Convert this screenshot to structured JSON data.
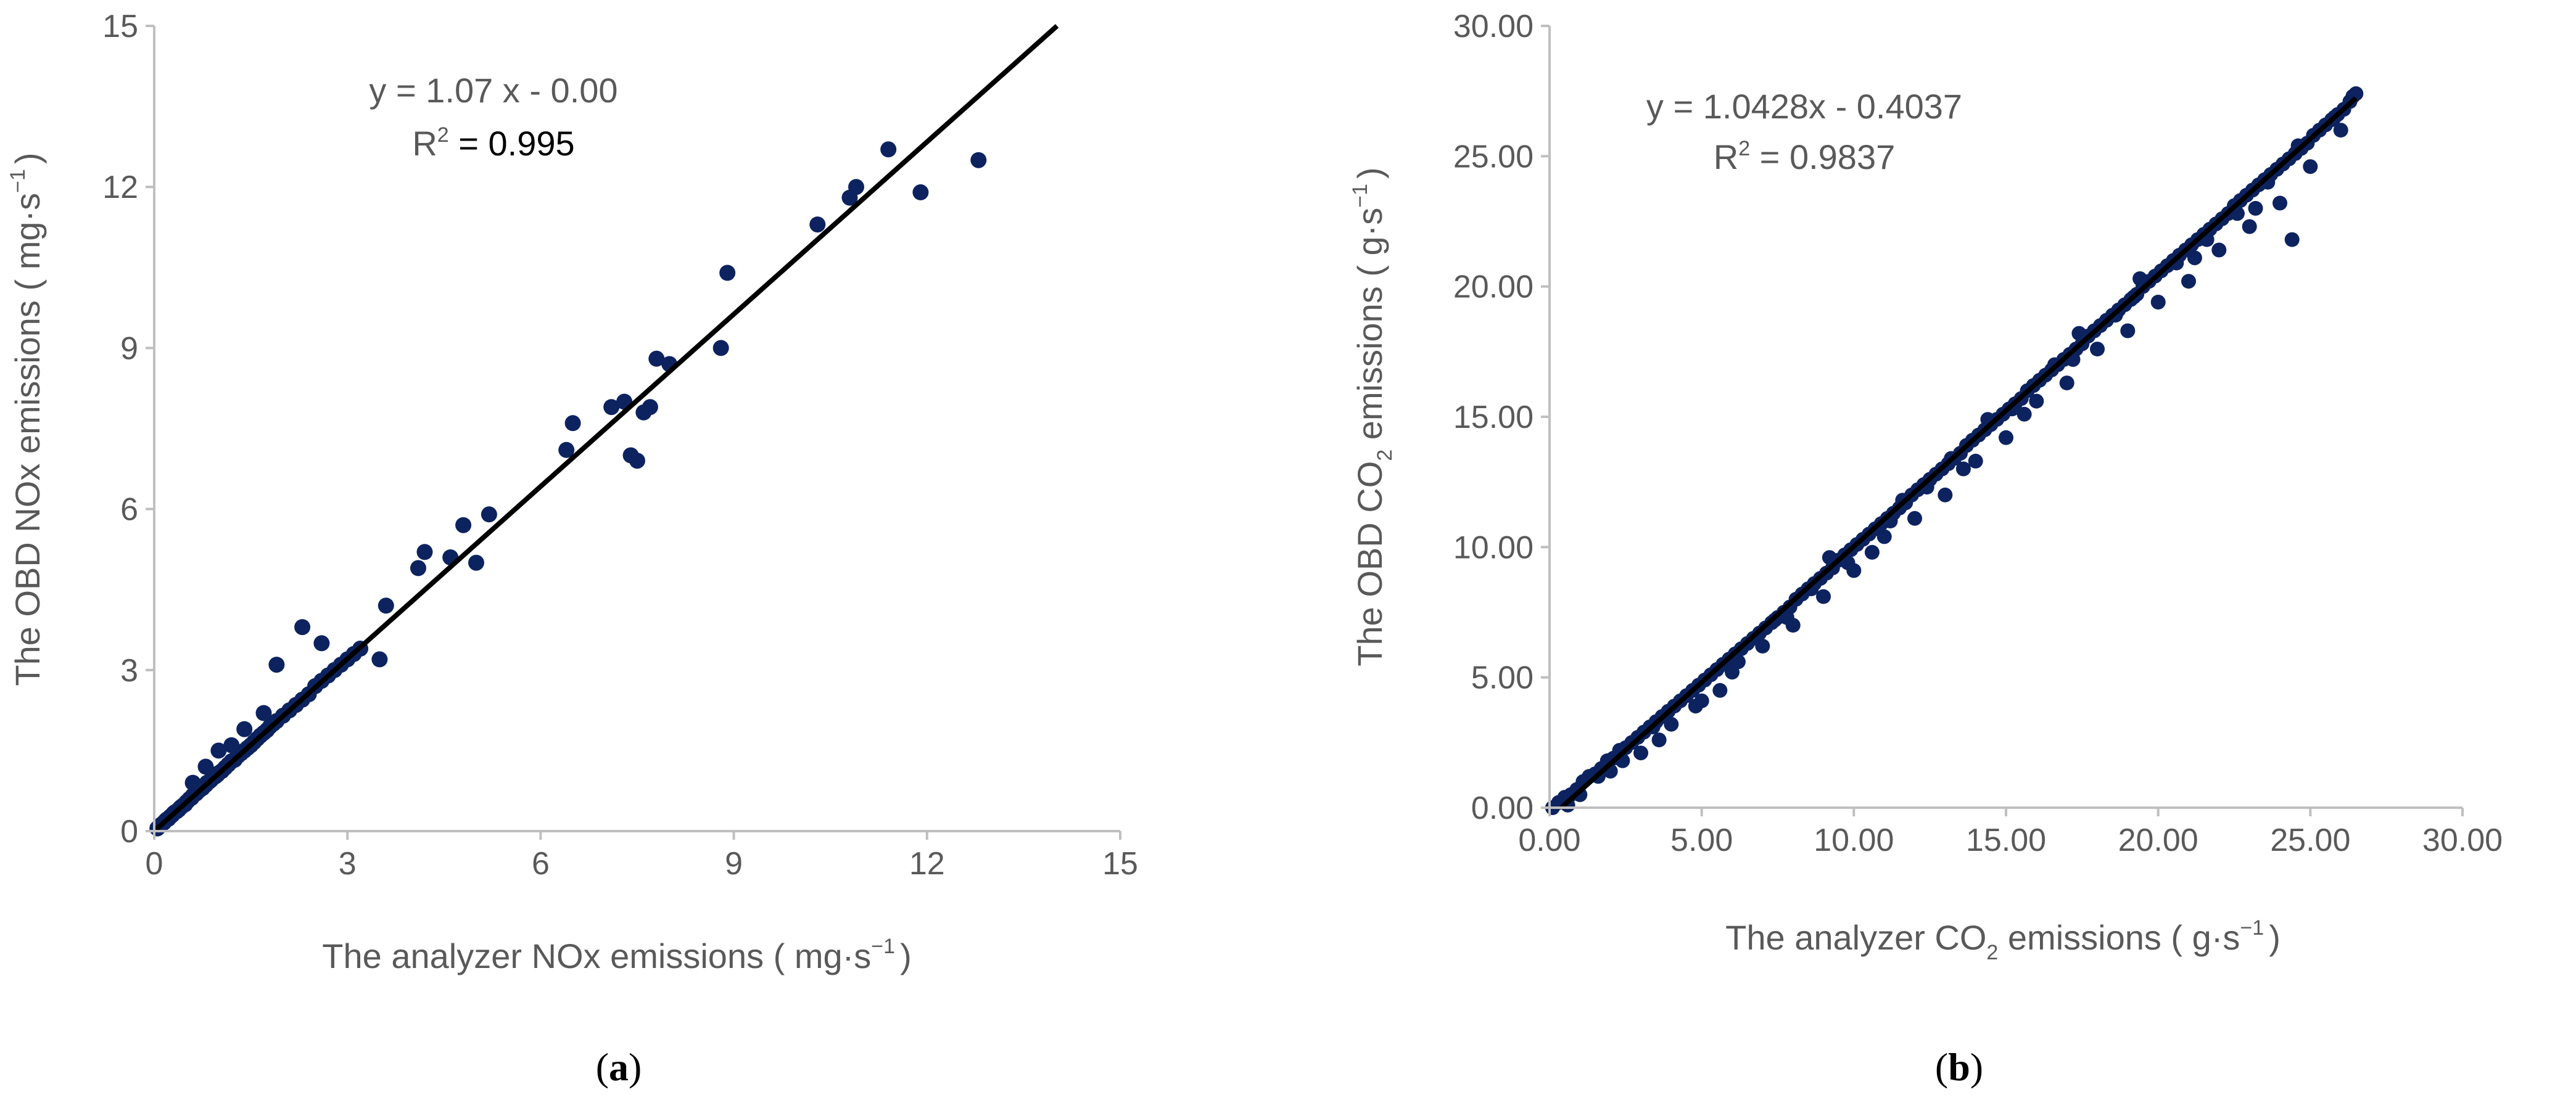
{
  "colors": {
    "points": "#0d2360",
    "axis": "#bfbfbf",
    "text": "#595959",
    "fit": "#000000"
  },
  "chart_data": [
    {
      "type": "scatter",
      "panel_label": "(a)",
      "panel_letter": "a",
      "xlabel_pre": "The analyzer NOx emissions ( mg·s",
      "xlabel_sup": "−1",
      "xlabel_post": ")",
      "ylabel_pre": "The OBD NOx emissions ( mg·s",
      "ylabel_sup": "−1",
      "ylabel_post": ")",
      "xlim": [
        0,
        15
      ],
      "ylim": [
        0,
        15
      ],
      "xticks": [
        "0",
        "3",
        "6",
        "9",
        "12",
        "15"
      ],
      "yticks": [
        "0",
        "3",
        "6",
        "9",
        "12",
        "15"
      ],
      "equation": "y = 1.07 x - 0.00",
      "r2_label": "R",
      "r2_sup": "2",
      "r2_value": " = 0.995",
      "fit": {
        "slope": 1.07,
        "intercept": 0.0
      },
      "legend": "none",
      "grid": false,
      "x": [
        0.05,
        0.08,
        0.1,
        0.12,
        0.15,
        0.18,
        0.2,
        0.22,
        0.25,
        0.28,
        0.3,
        0.32,
        0.35,
        0.38,
        0.4,
        0.42,
        0.45,
        0.48,
        0.5,
        0.52,
        0.55,
        0.58,
        0.6,
        0.62,
        0.65,
        0.68,
        0.7,
        0.72,
        0.75,
        0.78,
        0.8,
        0.82,
        0.85,
        0.88,
        0.9,
        0.92,
        0.95,
        0.98,
        1.0,
        1.05,
        1.1,
        1.15,
        1.2,
        1.25,
        1.3,
        1.35,
        1.4,
        1.45,
        1.5,
        1.55,
        1.6,
        1.65,
        1.7,
        1.75,
        1.8,
        1.85,
        1.9,
        2.0,
        2.1,
        2.2,
        2.3,
        2.4,
        2.5,
        2.6,
        2.7,
        2.8,
        2.9,
        3.0,
        3.1,
        3.2,
        3.5,
        3.6,
        4.1,
        4.2,
        4.6,
        4.8,
        5.0,
        5.2,
        6.4,
        6.5,
        7.1,
        7.3,
        7.4,
        7.5,
        7.6,
        7.7,
        7.8,
        8.0,
        8.8,
        8.9,
        10.3,
        10.8,
        10.9,
        11.4,
        11.9,
        12.8,
        1.2,
        1.4,
        1.0,
        0.8,
        0.6,
        1.7,
        1.9,
        2.3,
        2.6
      ],
      "y": [
        0.05,
        0.09,
        0.11,
        0.13,
        0.16,
        0.2,
        0.22,
        0.23,
        0.27,
        0.3,
        0.33,
        0.35,
        0.37,
        0.4,
        0.43,
        0.45,
        0.48,
        0.5,
        0.54,
        0.56,
        0.6,
        0.62,
        0.66,
        0.68,
        0.7,
        0.74,
        0.76,
        0.78,
        0.8,
        0.85,
        0.86,
        0.9,
        0.92,
        0.95,
        0.98,
        1.0,
        1.02,
        1.05,
        1.08,
        1.12,
        1.18,
        1.24,
        1.3,
        1.33,
        1.4,
        1.45,
        1.5,
        1.55,
        1.6,
        1.66,
        1.72,
        1.78,
        1.83,
        1.88,
        1.95,
        2.0,
        2.05,
        2.15,
        2.25,
        2.35,
        2.45,
        2.55,
        2.7,
        2.8,
        2.9,
        3.0,
        3.1,
        3.2,
        3.3,
        3.4,
        3.2,
        4.2,
        4.9,
        5.2,
        5.1,
        5.7,
        5.0,
        5.9,
        7.1,
        7.6,
        7.9,
        8.0,
        7.0,
        6.9,
        7.8,
        7.9,
        8.8,
        8.7,
        9.0,
        10.4,
        11.3,
        11.8,
        12.0,
        12.7,
        11.9,
        12.5,
        1.6,
        1.9,
        1.5,
        1.2,
        0.9,
        2.2,
        3.1,
        3.8,
        3.5
      ]
    },
    {
      "type": "scatter",
      "panel_label": "(b)",
      "panel_letter": "b",
      "xlabel_pre": "The analyzer CO",
      "xlabel_sub": "2",
      "xlabel_mid": " emissions ( g·s",
      "xlabel_sup": "−1",
      "xlabel_post": ")",
      "ylabel_pre": "The  OBD CO",
      "ylabel_sub": "2",
      "ylabel_mid": " emissions ( g·s",
      "ylabel_sup": "−1",
      "ylabel_post": ")",
      "xlim": [
        0,
        30
      ],
      "ylim": [
        0,
        30
      ],
      "xticks": [
        "0.00",
        "5.00",
        "10.00",
        "15.00",
        "20.00",
        "25.00",
        "30.00"
      ],
      "yticks": [
        "0.00",
        "5.00",
        "10.00",
        "15.00",
        "20.00",
        "25.00",
        "30.00"
      ],
      "equation": "y = 1.0428x - 0.4037",
      "r2_label": "R",
      "r2_sup": "2",
      "r2_value": " = 0.9837",
      "fit": {
        "slope": 1.0428,
        "intercept": -0.4037
      },
      "legend": "none",
      "grid": false,
      "x": [
        0.1,
        0.3,
        0.5,
        0.7,
        0.9,
        1.1,
        1.3,
        1.5,
        1.7,
        1.9,
        2.1,
        2.3,
        2.5,
        2.7,
        2.9,
        3.1,
        3.3,
        3.5,
        3.7,
        3.9,
        4.1,
        4.3,
        4.5,
        4.7,
        4.9,
        5.1,
        5.3,
        5.5,
        5.7,
        5.9,
        6.1,
        6.3,
        6.5,
        6.7,
        6.9,
        7.1,
        7.3,
        7.5,
        7.7,
        7.9,
        8.1,
        8.3,
        8.5,
        8.7,
        8.9,
        9.1,
        9.3,
        9.5,
        9.7,
        9.9,
        10.1,
        10.3,
        10.5,
        10.7,
        10.9,
        11.1,
        11.3,
        11.5,
        11.7,
        11.9,
        12.1,
        12.3,
        12.5,
        12.7,
        12.9,
        13.1,
        13.3,
        13.5,
        13.7,
        13.9,
        14.1,
        14.3,
        14.5,
        14.7,
        14.9,
        15.1,
        15.3,
        15.5,
        15.7,
        15.9,
        16.1,
        16.3,
        16.5,
        16.7,
        16.9,
        17.1,
        17.3,
        17.5,
        17.7,
        17.9,
        18.1,
        18.3,
        18.5,
        18.7,
        18.9,
        19.1,
        19.3,
        19.5,
        19.7,
        19.9,
        20.1,
        20.3,
        20.5,
        20.7,
        20.9,
        21.1,
        21.3,
        21.5,
        21.7,
        21.9,
        22.1,
        22.3,
        22.5,
        22.7,
        22.9,
        23.1,
        23.3,
        23.5,
        23.7,
        23.9,
        24.1,
        24.3,
        24.5,
        24.7,
        24.9,
        25.1,
        25.3,
        25.5,
        25.7,
        25.9,
        26.1,
        26.3,
        26.5,
        0.6,
        1.0,
        2.0,
        3.0,
        4.0,
        5.0,
        6.0,
        7.0,
        8.0,
        9.0,
        10.0,
        11.0,
        12.0,
        13.0,
        14.0,
        15.0,
        16.0,
        17.0,
        18.0,
        19.0,
        20.0,
        21.0,
        22.0,
        23.0,
        24.0,
        25.0,
        26.0,
        2.4,
        3.6,
        4.8,
        6.2,
        7.4,
        8.6,
        9.8,
        10.6,
        11.6,
        12.4,
        13.6,
        14.4,
        15.6,
        16.6,
        17.4,
        18.6,
        19.4,
        20.6,
        21.6,
        22.6,
        23.6,
        24.6,
        25.8,
        1.6,
        3.4,
        5.6,
        7.8,
        9.2,
        11.2,
        13.2,
        15.2,
        17.2,
        19.2,
        21.2,
        23.2,
        24.4,
        26.4
      ],
      "y": [
        0.0,
        0.2,
        0.4,
        0.5,
        0.7,
        1.0,
        1.2,
        1.3,
        1.5,
        1.8,
        1.9,
        2.2,
        2.3,
        2.5,
        2.7,
        2.9,
        3.1,
        3.3,
        3.5,
        3.7,
        3.9,
        4.1,
        4.3,
        4.5,
        4.7,
        4.9,
        5.1,
        5.3,
        5.5,
        5.7,
        5.9,
        6.1,
        6.3,
        6.5,
        6.7,
        6.9,
        7.1,
        7.3,
        7.5,
        7.7,
        8.0,
        8.2,
        8.4,
        8.6,
        8.8,
        9.0,
        9.2,
        9.5,
        9.7,
        9.9,
        10.1,
        10.3,
        10.5,
        10.7,
        10.9,
        11.1,
        11.3,
        11.5,
        11.7,
        12.0,
        12.2,
        12.4,
        12.6,
        12.8,
        13.0,
        13.2,
        13.4,
        13.6,
        13.9,
        14.1,
        14.3,
        14.5,
        14.7,
        14.9,
        15.1,
        15.3,
        15.5,
        15.7,
        16.0,
        16.2,
        16.4,
        16.6,
        16.8,
        17.0,
        17.2,
        17.4,
        17.6,
        17.8,
        18.1,
        18.3,
        18.5,
        18.7,
        18.9,
        19.1,
        19.3,
        19.5,
        19.7,
        20.0,
        20.2,
        20.4,
        20.6,
        20.8,
        21.0,
        21.2,
        21.4,
        21.6,
        21.8,
        22.0,
        22.2,
        22.4,
        22.6,
        22.8,
        23.1,
        23.3,
        23.5,
        23.7,
        23.9,
        24.1,
        24.3,
        24.5,
        24.7,
        24.9,
        25.1,
        25.3,
        25.5,
        25.8,
        26.0,
        26.2,
        26.4,
        26.6,
        26.8,
        27.1,
        27.4,
        0.1,
        0.5,
        1.4,
        2.1,
        3.2,
        4.1,
        5.2,
        6.2,
        7.0,
        8.1,
        9.1,
        10.4,
        11.1,
        12.0,
        13.3,
        14.2,
        15.6,
        16.3,
        17.6,
        18.3,
        19.4,
        20.2,
        21.4,
        22.3,
        23.2,
        24.6,
        26.0,
        1.8,
        2.6,
        3.9,
        5.6,
        7.2,
        8.4,
        9.4,
        9.8,
        11.8,
        12.3,
        13.0,
        14.9,
        15.1,
        17.0,
        18.2,
        18.9,
        20.3,
        20.9,
        21.8,
        22.8,
        24.0,
        25.4,
        26.5,
        1.2,
        3.1,
        4.5,
        7.3,
        9.6,
        11.0,
        13.4,
        15.3,
        17.2,
        19.6,
        21.1,
        23.0,
        21.8,
        27.3
      ]
    }
  ]
}
